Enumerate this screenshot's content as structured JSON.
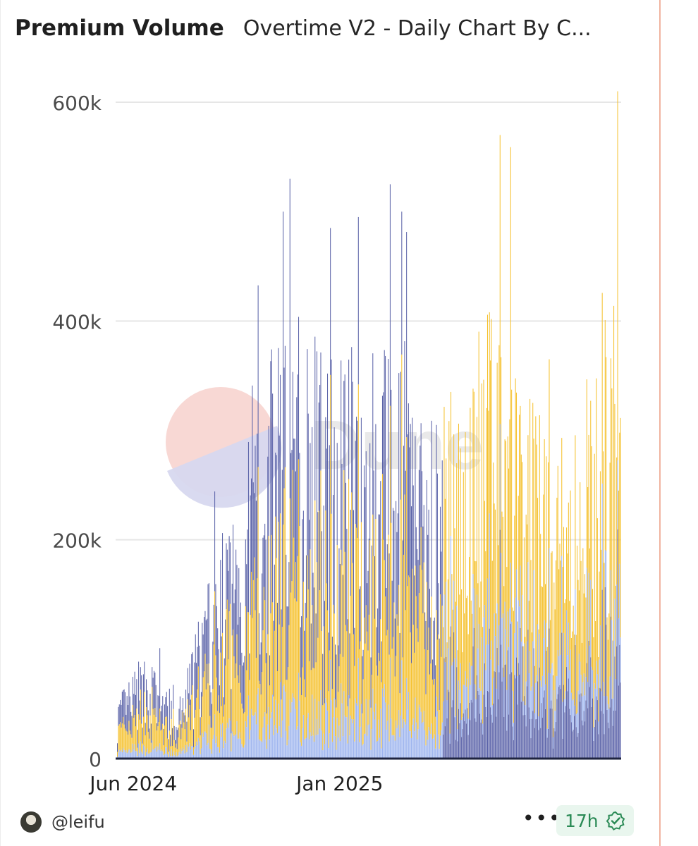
{
  "header": {
    "title": "Premium Volume",
    "subtitle": "Overtime V2 - Daily Chart By C..."
  },
  "watermark": {
    "text": "Dune"
  },
  "footer": {
    "author": "@leifu",
    "more_label": "•••",
    "age": "17h",
    "verified_icon": "check-badge-icon"
  },
  "colors": {
    "yellow": "#f5c12e",
    "dark_blue": "#5a62a8",
    "light_blue": "#9db4ee",
    "grid": "#e6e6e6",
    "age_green": "#2a8a55"
  },
  "chart_data": {
    "type": "bar",
    "stacked": true,
    "grid": "horizontal",
    "ylim": [
      0,
      600000
    ],
    "yticks": [
      {
        "value": 0,
        "label": "0"
      },
      {
        "value": 200000,
        "label": "200k"
      },
      {
        "value": 400000,
        "label": "400k"
      },
      {
        "value": 600000,
        "label": "600k"
      }
    ],
    "xrange": [
      "2024-05-15",
      "2025-10-20"
    ],
    "xticks": [
      {
        "date": "2024-06-01",
        "label": "Jun 2024"
      },
      {
        "date": "2025-01-01",
        "label": "Jan 2025"
      }
    ],
    "x_resolution": "daily",
    "series_colors": [
      "#9db4ee",
      "#f5c12e",
      "#5a62a8"
    ],
    "approximate_envelope": [
      {
        "date": "2024-05-15",
        "total": 40000
      },
      {
        "date": "2024-06-15",
        "total": 70000
      },
      {
        "date": "2024-07-15",
        "total": 30000
      },
      {
        "date": "2024-08-15",
        "total": 110000
      },
      {
        "date": "2024-09-15",
        "total": 170000
      },
      {
        "date": "2024-10-15",
        "total": 250000
      },
      {
        "date": "2024-11-15",
        "total": 300000
      },
      {
        "date": "2024-12-15",
        "total": 260000
      },
      {
        "date": "2025-01-15",
        "total": 270000
      },
      {
        "date": "2025-02-15",
        "total": 260000
      },
      {
        "date": "2025-03-15",
        "total": 240000
      },
      {
        "date": "2025-04-15",
        "total": 220000
      },
      {
        "date": "2025-05-15",
        "total": 260000
      },
      {
        "date": "2025-06-15",
        "total": 300000
      },
      {
        "date": "2025-07-15",
        "total": 230000
      },
      {
        "date": "2025-08-15",
        "total": 210000
      },
      {
        "date": "2025-09-15",
        "total": 220000
      },
      {
        "date": "2025-10-15",
        "total": 300000
      }
    ],
    "notable_peaks": [
      {
        "date": "2024-11-10",
        "total": 530000
      },
      {
        "date": "2024-11-03",
        "total": 500000
      },
      {
        "date": "2024-12-22",
        "total": 485000
      },
      {
        "date": "2025-01-20",
        "total": 495000
      },
      {
        "date": "2025-02-22",
        "total": 525000
      },
      {
        "date": "2025-03-06",
        "total": 500000
      },
      {
        "date": "2025-06-16",
        "total": 570000
      },
      {
        "date": "2025-10-16",
        "total": 610000
      }
    ]
  }
}
